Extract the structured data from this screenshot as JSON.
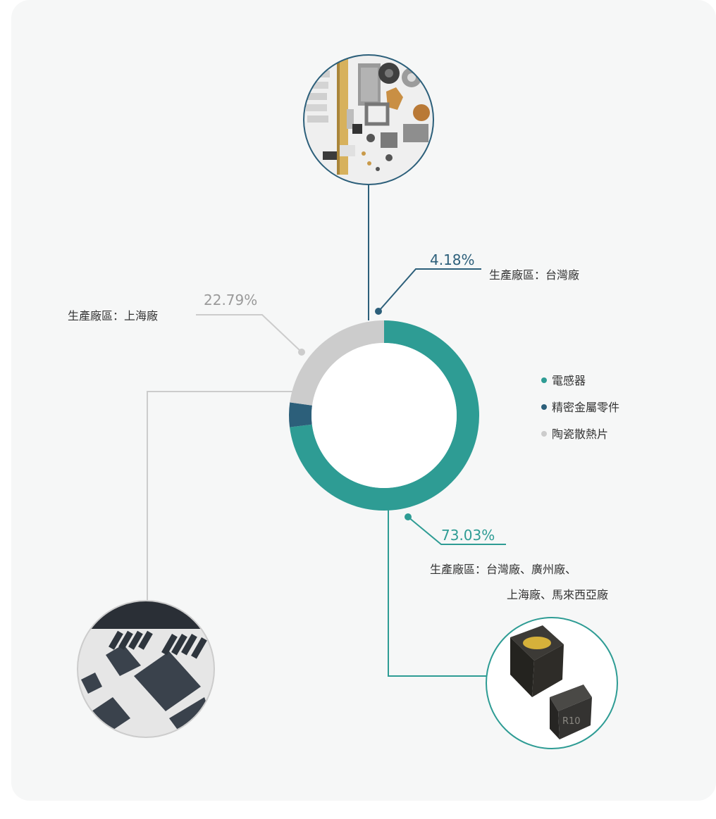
{
  "chart_data": {
    "type": "pie",
    "donut": true,
    "categories": [
      "電感器",
      "精密金屬零件",
      "陶瓷散熱片"
    ],
    "values": [
      73.03,
      4.18,
      22.79
    ],
    "value_labels": [
      "73.03%",
      "4.18%",
      "22.79%"
    ],
    "colors": [
      "#2e9c94",
      "#2c5f7a",
      "#cccccc"
    ],
    "legend_position": "right",
    "title": "",
    "annotations": [
      {
        "series": "精密金屬零件",
        "value": "4.18%",
        "label": "生產廠區：台灣廠"
      },
      {
        "series": "陶瓷散熱片",
        "value": "22.79%",
        "label": "生產廠區：上海廠"
      },
      {
        "series": "電感器",
        "value": "73.03%",
        "label_lines": [
          "生產廠區：台灣廠、廣州廠、",
          "上海廠、馬來西亞廠"
        ]
      }
    ]
  },
  "images": {
    "metal": "precision-metal-parts-photo",
    "ceramic": "ceramic-heat-sink-photo",
    "inductor": "inductor-photo"
  }
}
